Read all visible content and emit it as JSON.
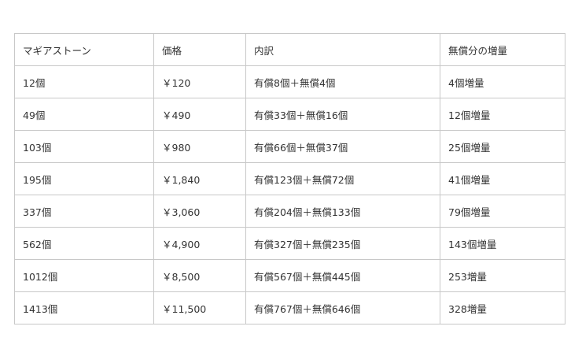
{
  "table": {
    "headers": [
      "マギアストーン",
      "価格",
      "内訳",
      "無償分の増量"
    ],
    "rows": [
      [
        "12個",
        "￥120",
        "有償8個＋無償4個",
        "4個増量"
      ],
      [
        "49個",
        "￥490",
        "有償33個＋無償16個",
        "12個増量"
      ],
      [
        "103個",
        "￥980",
        "有償66個＋無償37個",
        "25個増量"
      ],
      [
        "195個",
        "￥1,840",
        "有償123個＋無償72個",
        "41個増量"
      ],
      [
        "337個",
        "￥3,060",
        "有償204個＋無償133個",
        "79個増量"
      ],
      [
        "562個",
        "￥4,900",
        "有償327個＋無償235個",
        "143個増量"
      ],
      [
        "1012個",
        "￥8,500",
        "有償567個＋無償445個",
        "253増量"
      ],
      [
        "1413個",
        "￥11,500",
        "有償767個＋無償646個",
        "328増量"
      ]
    ]
  },
  "colors": {
    "border": "#c8c8c8",
    "text": "#333333"
  }
}
